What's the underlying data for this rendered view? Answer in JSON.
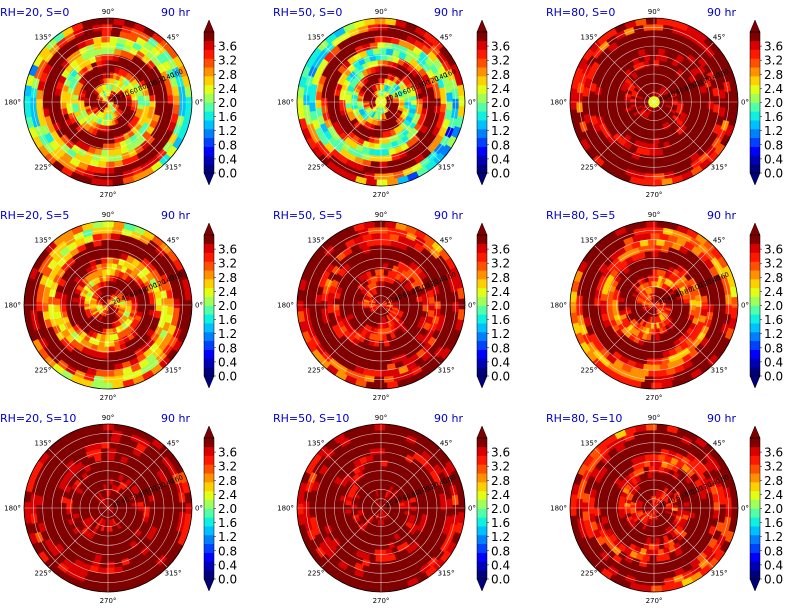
{
  "figure": {
    "time_label": "90 hr",
    "radial_tick_labels": [
      "20",
      "40",
      "60",
      "80",
      "100",
      "120",
      "140",
      "160"
    ],
    "angle_tick_labels": [
      "90°",
      "45°",
      "0°",
      "315°",
      "270°",
      "225°",
      "180°",
      "135°"
    ],
    "colorbar_ticks": [
      "0.0",
      "0.4",
      "0.8",
      "1.2",
      "1.6",
      "2.0",
      "2.4",
      "2.8",
      "3.2",
      "3.6"
    ],
    "colormap": [
      "#00007f",
      "#0000b5",
      "#0000ff",
      "#0040ff",
      "#0080ff",
      "#00c0ff",
      "#10f0e0",
      "#50ffa8",
      "#a0ff58",
      "#e0ff18",
      "#ffd000",
      "#ff9000",
      "#ff5000",
      "#ff1800",
      "#d80000",
      "#800000"
    ],
    "colorbar_extend": "both"
  },
  "chart_data": [
    {
      "type": "heatmap",
      "projection": "polar",
      "title": "RH=20, S=0",
      "time": "90 hr",
      "rh": 20,
      "s": 0,
      "r_ticks": [
        20,
        40,
        60,
        80,
        100,
        120,
        140,
        160
      ],
      "clim": [
        0.0,
        3.6
      ],
      "dominant_level_range": [
        2.0,
        3.6
      ],
      "structure": "spiral bands with mixed 2.4-3.6 values, lower 1.6-2.4 values in outer left ring"
    },
    {
      "type": "heatmap",
      "projection": "polar",
      "title": "RH=50, S=0",
      "time": "90 hr",
      "rh": 50,
      "s": 0,
      "r_ticks": [
        20,
        40,
        60,
        80,
        100,
        120,
        140,
        160
      ],
      "clim": [
        0.0,
        3.6
      ],
      "dominant_level_range": [
        1.6,
        3.6
      ],
      "structure": "spiral bands of 3.6+ embedded in 1.6-2.4 background, small low-value eye near center"
    },
    {
      "type": "heatmap",
      "projection": "polar",
      "title": "RH=80, S=0",
      "time": "90 hr",
      "rh": 80,
      "s": 0,
      "r_ticks": [
        20,
        40,
        60,
        80,
        100,
        120,
        140,
        160
      ],
      "clim": [
        0.0,
        3.6
      ],
      "dominant_level_range": [
        3.6,
        3.6
      ],
      "structure": "mostly >3.6 inside r<140, eye near center ~2.4, outer ring 2.4-3.2"
    },
    {
      "type": "heatmap",
      "projection": "polar",
      "title": "RH=20, S=5",
      "time": "90 hr",
      "rh": 20,
      "s": 5,
      "r_ticks": [
        20,
        40,
        60,
        80,
        100,
        120,
        140,
        160
      ],
      "clim": [
        0.0,
        3.6
      ],
      "dominant_level_range": [
        2.4,
        3.6
      ],
      "structure": "spiral bands, red-orange dominant, lower values on north edge"
    },
    {
      "type": "heatmap",
      "projection": "polar",
      "title": "RH=50, S=5",
      "time": "90 hr",
      "rh": 50,
      "s": 5,
      "r_ticks": [
        20,
        40,
        60,
        80,
        100,
        120,
        140,
        160
      ],
      "clim": [
        0.0,
        3.6
      ],
      "dominant_level_range": [
        3.2,
        3.6
      ],
      "structure": "mostly >3.6, lower values near north outer edge"
    },
    {
      "type": "heatmap",
      "projection": "polar",
      "title": "RH=80, S=5",
      "time": "90 hr",
      "rh": 80,
      "s": 5,
      "r_ticks": [
        20,
        40,
        60,
        80,
        100,
        120,
        140,
        160
      ],
      "clim": [
        0.0,
        3.6
      ],
      "dominant_level_range": [
        2.8,
        3.6
      ],
      "structure": "mostly >3.6 core, 2.0-2.8 patches in northwest, orange eye region"
    },
    {
      "type": "heatmap",
      "projection": "polar",
      "title": "RH=20, S=10",
      "time": "90 hr",
      "rh": 20,
      "s": 10,
      "r_ticks": [
        20,
        40,
        60,
        80,
        100,
        120,
        140,
        160
      ],
      "clim": [
        0.0,
        3.6
      ],
      "dominant_level_range": [
        3.6,
        3.6
      ],
      "structure": "nearly uniform >3.6, some 2.0-3.2 along north edge"
    },
    {
      "type": "heatmap",
      "projection": "polar",
      "title": "RH=50, S=10",
      "time": "90 hr",
      "rh": 50,
      "s": 10,
      "r_ticks": [
        20,
        40,
        60,
        80,
        100,
        120,
        140,
        160
      ],
      "clim": [
        0.0,
        3.6
      ],
      "dominant_level_range": [
        3.6,
        3.6
      ],
      "structure": "nearly uniform >3.6, 2.4-3.2 patches in northeast"
    },
    {
      "type": "heatmap",
      "projection": "polar",
      "title": "RH=80, S=10",
      "time": "90 hr",
      "rh": 80,
      "s": 10,
      "r_ticks": [
        20,
        40,
        60,
        80,
        100,
        120,
        140,
        160
      ],
      "clim": [
        0.0,
        3.6
      ],
      "dominant_level_range": [
        3.2,
        3.6
      ],
      "structure": "mostly >3.6, orange 2.8-3.2 region in north half"
    }
  ]
}
